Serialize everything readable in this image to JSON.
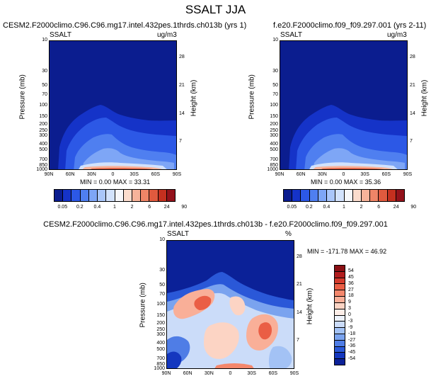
{
  "figure_title": "SSALT JJA",
  "chart_data": [
    {
      "type": "heatmap",
      "title": "CESM2.F2000climo.C96.C96.mg17.intel.432pes.1thrds.ch013b (yrs 1)",
      "variable": "SSALT",
      "units": "ug/m3",
      "xlabel": "",
      "ylabel": "Pressure (mb)",
      "ylabel_right": "Height (km)",
      "x_ticks": [
        "90N",
        "60N",
        "30N",
        "0",
        "30S",
        "60S",
        "90S"
      ],
      "y_ticks": [
        "10",
        "30",
        "50",
        "70",
        "100",
        "150",
        "200",
        "250",
        "300",
        "400",
        "500",
        "700",
        "850",
        "1000"
      ],
      "y_ticks_right": [
        "28",
        "21",
        "14",
        "7"
      ],
      "y_scale": "log",
      "min_label": "MIN =",
      "min": "0.00",
      "max_label": "MAX =",
      "max": "33.31",
      "colorbar_levels": [
        "0.05",
        "0.2",
        "0.4",
        "1",
        "2",
        "6",
        "24",
        "90"
      ]
    },
    {
      "type": "heatmap",
      "title": "f.e20.F2000climo.f09_f09.297.001 (yrs 2-11)",
      "variable": "SSALT",
      "units": "ug/m3",
      "xlabel": "",
      "ylabel": "Pressure (mb)",
      "ylabel_right": "Height (km)",
      "x_ticks": [
        "90N",
        "60N",
        "30N",
        "0",
        "30S",
        "60S",
        "90S"
      ],
      "y_ticks": [
        "10",
        "30",
        "50",
        "70",
        "100",
        "150",
        "200",
        "250",
        "300",
        "400",
        "500",
        "700",
        "850",
        "1000"
      ],
      "y_ticks_right": [
        "28",
        "21",
        "14",
        "7"
      ],
      "y_scale": "log",
      "min_label": "MIN =",
      "min": "0.00",
      "max_label": "MAX =",
      "max": "35.36",
      "colorbar_levels": [
        "0.05",
        "0.2",
        "0.4",
        "1",
        "2",
        "6",
        "24",
        "90"
      ]
    },
    {
      "type": "heatmap",
      "title": "CESM2.F2000climo.C96.C96.mg17.intel.432pes.1thrds.ch013b - f.e20.F2000climo.f09_f09.297.001",
      "variable": "SSALT",
      "units": "%",
      "xlabel": "",
      "ylabel": "Pressure (mb)",
      "ylabel_right": "Height (km)",
      "x_ticks": [
        "90N",
        "60N",
        "30N",
        "0",
        "30S",
        "60S",
        "90S"
      ],
      "y_ticks": [
        "10",
        "30",
        "50",
        "70",
        "100",
        "150",
        "200",
        "250",
        "300",
        "400",
        "500",
        "700",
        "850",
        "1000"
      ],
      "y_ticks_right": [
        "28",
        "21",
        "14",
        "7"
      ],
      "y_scale": "log",
      "min_label": "MIN =",
      "min": "-171.78",
      "max_label": "MAX =",
      "max": "46.92",
      "colorbar_levels": [
        "54",
        "45",
        "36",
        "27",
        "18",
        "9",
        "3",
        "0",
        "-3",
        "-9",
        "-18",
        "-27",
        "-36",
        "-45",
        "-54"
      ]
    }
  ],
  "colors": {
    "abs_scale": [
      "#0b1d8f",
      "#1533c8",
      "#2c58e6",
      "#4f7ff0",
      "#7ea6f6",
      "#a9c6fa",
      "#d2e2fc",
      "#f6f7fa",
      "#fbdccd",
      "#f7b39a",
      "#ef8567",
      "#e05a3e",
      "#c4301f",
      "#93121b"
    ],
    "diff_scale": [
      "#8a0f14",
      "#b21d1e",
      "#d43a2c",
      "#ea5e45",
      "#f4876c",
      "#f9af98",
      "#fcd4c4",
      "#fdeee8",
      "#eef3fc",
      "#cbdcf9",
      "#a3c2f5",
      "#7aa3ef",
      "#4f7de6",
      "#2a58d8",
      "#1437bf",
      "#0b2198"
    ]
  }
}
